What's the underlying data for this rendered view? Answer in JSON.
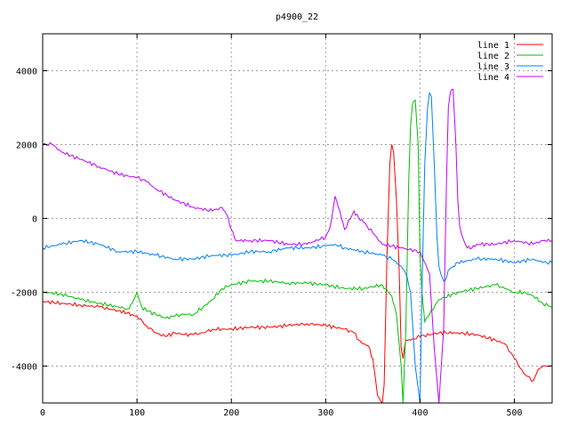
{
  "chart_data": {
    "type": "line",
    "title": "p4900_22",
    "xlabel": "",
    "ylabel": "",
    "xlim": [
      0,
      540
    ],
    "ylim": [
      -5000,
      5000
    ],
    "xticks": [
      0,
      100,
      200,
      300,
      400,
      500
    ],
    "yticks": [
      -4000,
      -2000,
      0,
      2000,
      4000
    ],
    "grid": true,
    "legend_position": "top-right",
    "series": [
      {
        "name": "line 1",
        "color": "#ff0000",
        "x": [
          0,
          20,
          40,
          60,
          80,
          95,
          100,
          110,
          120,
          130,
          140,
          150,
          160,
          170,
          180,
          190,
          200,
          220,
          240,
          260,
          280,
          300,
          320,
          330,
          335,
          340,
          345,
          350,
          355,
          360,
          362,
          365,
          368,
          370,
          372,
          375,
          378,
          380,
          382,
          385,
          390,
          400,
          420,
          440,
          460,
          480,
          490,
          500,
          510,
          520,
          525,
          530,
          540
        ],
        "y": [
          -2250,
          -2300,
          -2350,
          -2400,
          -2500,
          -2600,
          -2650,
          -2900,
          -3100,
          -3200,
          -3100,
          -3150,
          -3150,
          -3100,
          -3000,
          -3000,
          -3000,
          -2950,
          -2950,
          -2900,
          -2850,
          -2900,
          -3000,
          -3100,
          -3300,
          -3400,
          -3450,
          -3800,
          -4800,
          -5000,
          -4500,
          -1000,
          1500,
          2000,
          1800,
          500,
          -1500,
          -3500,
          -3800,
          -3300,
          -3300,
          -3200,
          -3100,
          -3100,
          -3150,
          -3300,
          -3400,
          -3800,
          -4200,
          -4400,
          -4100,
          -4000,
          -4000
        ]
      },
      {
        "name": "line 2",
        "color": "#00c000",
        "x": [
          0,
          20,
          40,
          60,
          80,
          90,
          95,
          100,
          105,
          110,
          120,
          130,
          140,
          150,
          160,
          170,
          180,
          190,
          200,
          220,
          240,
          260,
          280,
          300,
          320,
          340,
          360,
          370,
          375,
          380,
          382,
          385,
          388,
          390,
          392,
          395,
          398,
          400,
          402,
          405,
          410,
          420,
          440,
          460,
          480,
          490,
          500,
          510,
          520,
          530,
          540
        ],
        "y": [
          -2000,
          -2050,
          -2200,
          -2300,
          -2400,
          -2450,
          -2300,
          -2000,
          -2400,
          -2500,
          -2600,
          -2700,
          -2650,
          -2600,
          -2600,
          -2400,
          -2200,
          -1900,
          -1800,
          -1700,
          -1700,
          -1750,
          -1750,
          -1800,
          -1900,
          -1900,
          -1800,
          -2100,
          -2600,
          -4000,
          -5000,
          -3000,
          1000,
          2500,
          3100,
          3200,
          2000,
          -1000,
          -2000,
          -2800,
          -2600,
          -2200,
          -2000,
          -1900,
          -1800,
          -1900,
          -2000,
          -2000,
          -2100,
          -2300,
          -2400
        ]
      },
      {
        "name": "line 3",
        "color": "#0080ff",
        "x": [
          0,
          20,
          40,
          60,
          80,
          100,
          120,
          140,
          160,
          180,
          200,
          220,
          240,
          260,
          280,
          300,
          310,
          320,
          340,
          360,
          370,
          380,
          385,
          390,
          395,
          400,
          402,
          405,
          408,
          410,
          412,
          415,
          418,
          420,
          422,
          425,
          428,
          430,
          435,
          440,
          460,
          480,
          500,
          520,
          530,
          540
        ],
        "y": [
          -800,
          -700,
          -600,
          -700,
          -900,
          -900,
          -1000,
          -1100,
          -1100,
          -1000,
          -1000,
          -900,
          -900,
          -800,
          -800,
          -750,
          -700,
          -800,
          -900,
          -1000,
          -1100,
          -1300,
          -1500,
          -2000,
          -4000,
          -5000,
          -2000,
          1500,
          3000,
          3400,
          3300,
          1500,
          -500,
          -1300,
          -1500,
          -1700,
          -1600,
          -1400,
          -1300,
          -1200,
          -1100,
          -1100,
          -1200,
          -1100,
          -1200,
          -1200
        ]
      },
      {
        "name": "line 4",
        "color": "#c000ff",
        "x": [
          0,
          10,
          20,
          40,
          60,
          80,
          100,
          110,
          120,
          140,
          160,
          180,
          190,
          195,
          200,
          205,
          220,
          240,
          260,
          280,
          300,
          305,
          310,
          315,
          320,
          330,
          335,
          340,
          350,
          360,
          380,
          400,
          410,
          415,
          420,
          425,
          428,
          430,
          432,
          435,
          438,
          440,
          442,
          445,
          448,
          450,
          455,
          460,
          480,
          500,
          520,
          530,
          540
        ],
        "y": [
          2000,
          2000,
          1800,
          1600,
          1400,
          1200,
          1100,
          1000,
          800,
          500,
          300,
          200,
          300,
          100,
          -300,
          -600,
          -600,
          -600,
          -700,
          -700,
          -500,
          -200,
          600,
          200,
          -300,
          200,
          0,
          -100,
          -400,
          -700,
          -800,
          -900,
          -1500,
          -3500,
          -5000,
          -3000,
          1000,
          3000,
          3400,
          3500,
          2000,
          500,
          -200,
          -500,
          -700,
          -800,
          -800,
          -700,
          -700,
          -600,
          -700,
          -600,
          -600
        ]
      }
    ]
  }
}
